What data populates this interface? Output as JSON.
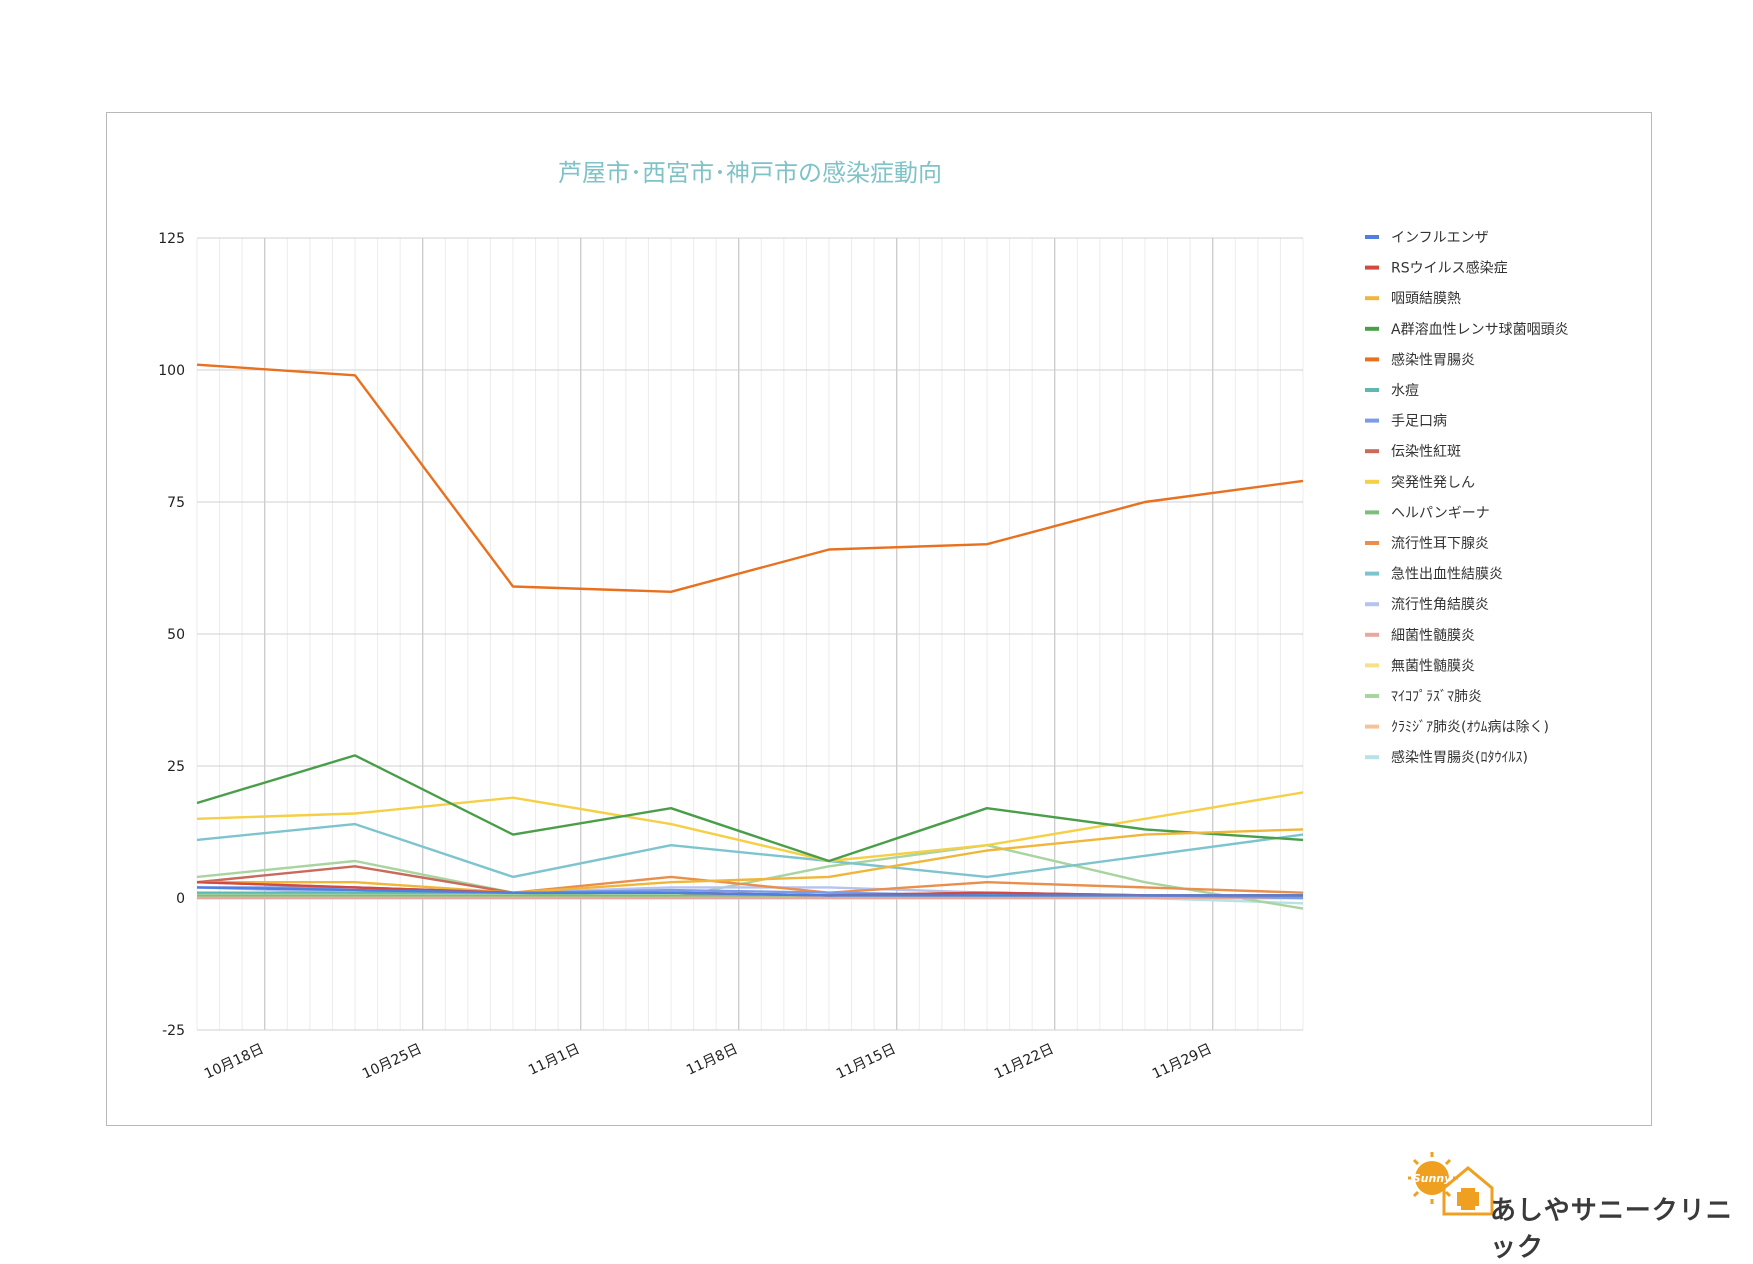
{
  "chart_data": {
    "type": "line",
    "title": "芦屋市･西宮市･神戸市の感染症動向",
    "xlabel": "",
    "ylabel": "",
    "ylim": [
      -25,
      125
    ],
    "yticks": [
      -25,
      0,
      25,
      50,
      75,
      100,
      125
    ],
    "grid": true,
    "legend": "right",
    "x_dates": [
      "10/15",
      "10/22",
      "10/29",
      "11/5",
      "11/12",
      "11/19",
      "11/26",
      "12/3"
    ],
    "x_tick_labels": [
      "10月18日",
      "10月25日",
      "11月1日",
      "11月8日",
      "11月15日",
      "11月22日",
      "11月29日"
    ],
    "series": [
      {
        "name": "インフルエンザ",
        "color": "#4f7fe0",
        "values": [
          2,
          1.5,
          1,
          1,
          0.5,
          0.5,
          0.5,
          0.5
        ]
      },
      {
        "name": "RSウイルス感染症",
        "color": "#d24a3f",
        "values": [
          3,
          2,
          1,
          1,
          0.5,
          1,
          0.5,
          0.5
        ]
      },
      {
        "name": "咽頭結膜熱",
        "color": "#f0b63a",
        "values": [
          3,
          3,
          1,
          3,
          4,
          9,
          12,
          13
        ]
      },
      {
        "name": "A群溶血性レンサ球菌咽頭炎",
        "color": "#4a9e4a",
        "values": [
          18,
          27,
          12,
          17,
          7,
          17,
          13,
          11
        ]
      },
      {
        "name": "感染性胃腸炎",
        "color": "#e8711f",
        "values": [
          101,
          99,
          59,
          58,
          66,
          67,
          75,
          79
        ]
      },
      {
        "name": "水痘",
        "color": "#5fb8b0",
        "values": [
          1,
          1,
          1,
          1,
          0.5,
          0.5,
          0.5,
          0.5
        ]
      },
      {
        "name": "手足口病",
        "color": "#7b9ae8",
        "values": [
          2,
          2,
          1,
          1.5,
          1,
          0.5,
          0.5,
          0
        ]
      },
      {
        "name": "伝染性紅斑",
        "color": "#c96a5a",
        "values": [
          3,
          6,
          1,
          1,
          0.5,
          1,
          0.5,
          0.5
        ]
      },
      {
        "name": "突発性発しん",
        "color": "#f5cf45",
        "values": [
          15,
          16,
          19,
          14,
          7,
          10,
          15,
          20
        ]
      },
      {
        "name": "ヘルパンギーナ",
        "color": "#7cbf7c",
        "values": [
          0.5,
          0.5,
          0.5,
          0.5,
          0.5,
          0.5,
          0.5,
          0.5
        ]
      },
      {
        "name": "流行性耳下腺炎",
        "color": "#ea8e4c",
        "values": [
          3,
          2,
          1,
          4,
          1,
          3,
          2,
          1
        ]
      },
      {
        "name": "急性出血性結膜炎",
        "color": "#7ec4cf",
        "values": [
          11,
          14,
          4,
          10,
          7,
          4,
          8,
          12
        ]
      },
      {
        "name": "流行性角結膜炎",
        "color": "#b5c3f0",
        "values": [
          2,
          1,
          1,
          2,
          2,
          1,
          0.5,
          0
        ]
      },
      {
        "name": "細菌性髄膜炎",
        "color": "#e8a8a0",
        "values": [
          0,
          0,
          0,
          0,
          0,
          0,
          0,
          0
        ]
      },
      {
        "name": "無菌性髄膜炎",
        "color": "#f7e08a",
        "values": [
          0,
          0,
          0,
          0,
          0,
          0,
          0,
          0
        ]
      },
      {
        "name": "ﾏｲｺﾌﾟﾗｽﾞﾏ肺炎",
        "color": "#a8d4a0",
        "values": [
          4,
          7,
          1,
          0,
          6,
          10,
          3,
          -2
        ]
      },
      {
        "name": "ｸﾗﾐｼﾞｱ肺炎(ｵｳﾑ病は除く)",
        "color": "#f4c39a",
        "values": [
          0,
          0,
          0,
          0,
          0,
          0,
          0,
          0
        ]
      },
      {
        "name": "感染性胃腸炎(ﾛﾀｳｲﾙｽ)",
        "color": "#b8e2e6",
        "values": [
          0,
          0,
          0,
          0,
          0,
          0,
          0,
          -1
        ]
      }
    ]
  },
  "clinic_name": "あしやサニークリニック",
  "logo_mark_text": "Sunny"
}
